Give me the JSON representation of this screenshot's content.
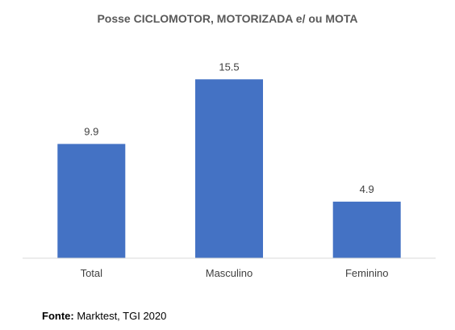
{
  "chart_data": {
    "type": "bar",
    "title": "Posse CICLOMOTOR, MOTORIZADA e/ ou MOTA",
    "categories": [
      "Total",
      "Masculino",
      "Feminino"
    ],
    "values": [
      9.9,
      15.5,
      4.9
    ],
    "value_labels": [
      "9.9",
      "15.5",
      "4.9"
    ],
    "xlabel": "",
    "ylabel": "",
    "ylim": [
      0,
      18
    ],
    "grid": false,
    "legend": "none",
    "bar_color": "#4472C4",
    "axis_color": "#D9D9D9"
  },
  "source": {
    "label": "Fonte:",
    "text": "Marktest, TGI 2020"
  }
}
